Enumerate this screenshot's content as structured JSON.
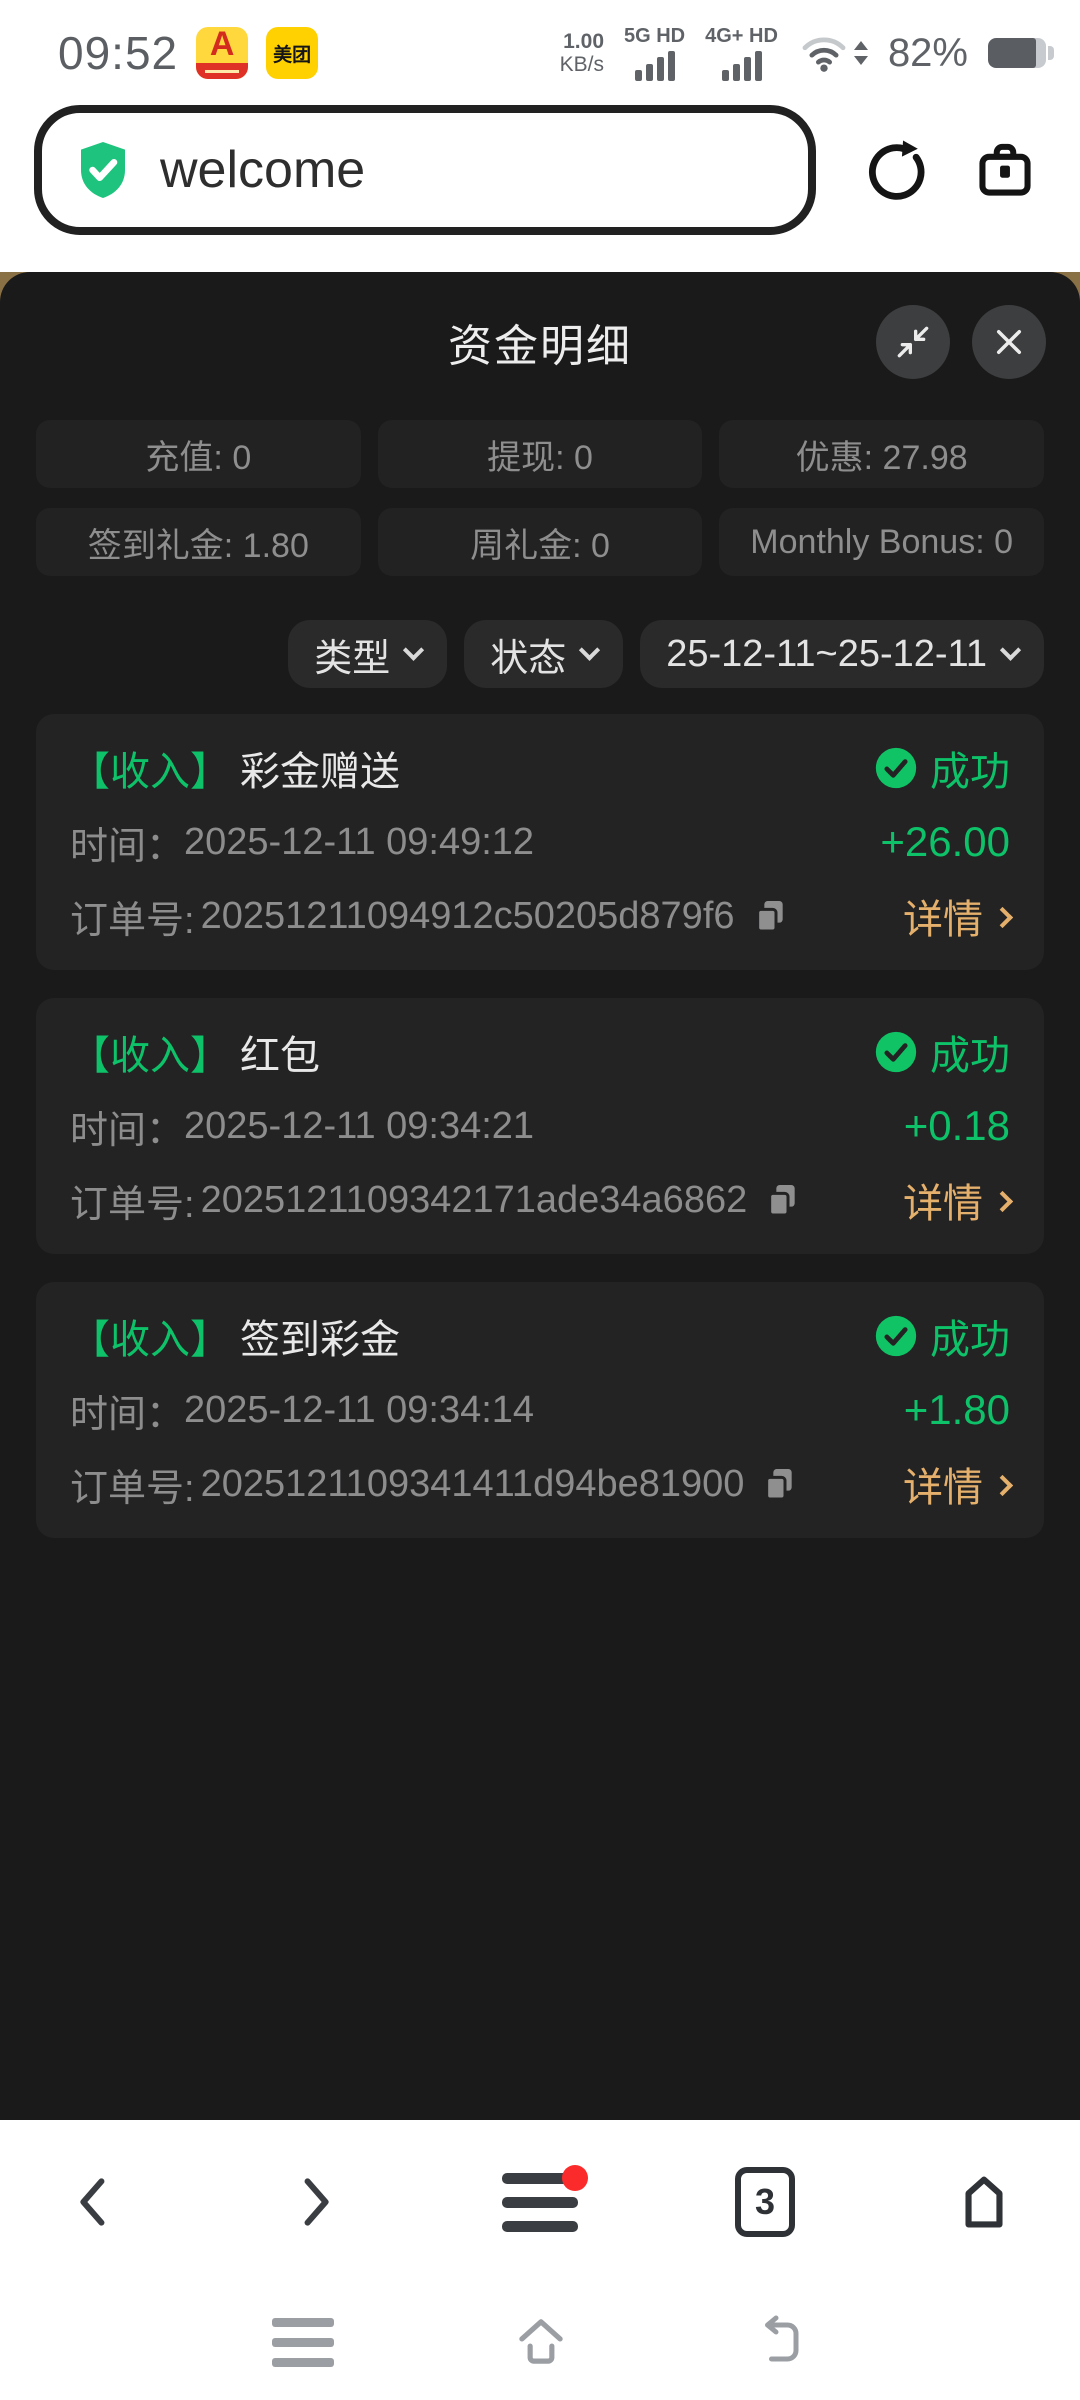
{
  "status_bar": {
    "time": "09:52",
    "net_speed_value": "1.00",
    "net_speed_unit": "KB/s",
    "sim1_label": "5G HD",
    "sim2_label": "4G+ HD",
    "battery_percent_text": "82%",
    "battery_level": 82,
    "app_icon_car_letter": "A",
    "app_icon_meituan_text": "美团"
  },
  "browser": {
    "url_text": "welcome",
    "tab_count": "3"
  },
  "modal": {
    "title": "资金明细",
    "summary_chips": [
      "充值: 0",
      "提现: 0",
      "优惠: 27.98",
      "签到礼金: 1.80",
      "周礼金: 0",
      "Monthly Bonus: 0"
    ],
    "filters": {
      "type_label": "类型",
      "status_label": "状态",
      "date_range": "25-12-11~25-12-11"
    },
    "transactions": [
      {
        "category": "【收入】",
        "title": "彩金赠送",
        "status": "成功",
        "time_label": "时间：",
        "time": "2025-12-11 09:49:12",
        "order_label": "订单号:",
        "order_no": "20251211094912c50205d879f6",
        "amount": "+26.00",
        "detail_label": "详情"
      },
      {
        "category": "【收入】",
        "title": "红包",
        "status": "成功",
        "time_label": "时间：",
        "time": "2025-12-11 09:34:21",
        "order_label": "订单号:",
        "order_no": "2025121109342171ade34a6862",
        "amount": "+0.18",
        "detail_label": "详情"
      },
      {
        "category": "【收入】",
        "title": "签到彩金",
        "status": "成功",
        "time_label": "时间：",
        "time": "2025-12-11 09:34:14",
        "order_label": "订单号:",
        "order_no": "2025121109341411d94be81900",
        "amount": "+1.80",
        "detail_label": "详情"
      }
    ]
  },
  "icons": {
    "verified_shield": "green shield with white checkmark",
    "refresh": "clockwise circular arrow",
    "toolbox": "briefcase outline",
    "minimize": "two diagonal arrows pointing inward",
    "close": "x cross",
    "copy": "two overlapping squares",
    "success_check": "green circle with checkmark",
    "wifi": "wifi arcs with up-down arrows",
    "battery": "battery 82% filled",
    "menu_red_dot": "hamburger menu with red notification dot",
    "tab_counter": "rounded square with count",
    "browser_home": "pentagon house outline",
    "nav_menu": "three gray bars",
    "nav_home": "house outline",
    "nav_back": "rounded return arrow"
  },
  "colors": {
    "accent_green": "#0dc268",
    "accent_orange": "#e5b06b",
    "modal_bg": "#1a1a1b",
    "card_bg": "#232324",
    "chip_bg": "#222223",
    "backdrop_tan": "#8a7045",
    "badge_red": "#fb2b2b"
  }
}
